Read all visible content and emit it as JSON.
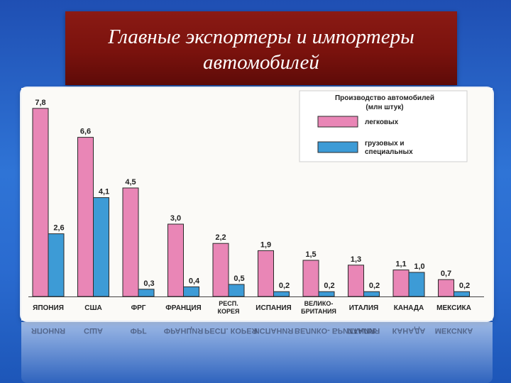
{
  "slide": {
    "title_line1": "Главные экспортеры и импортеры",
    "title_line2": "автомобилей"
  },
  "chart_data": {
    "type": "bar",
    "legend_title": [
      "Производство автомобилей",
      "(млн штук)"
    ],
    "legend_position": "top-right",
    "categories": [
      "ЯПОНИЯ",
      "США",
      "ФРГ",
      "ФРАНЦИЯ",
      "РЕСП. КОРЕЯ",
      "ИСПАНИЯ",
      "ВЕЛИКО- БРИТАНИЯ",
      "ИТАЛИЯ",
      "КАНАДА",
      "МЕКСИКА"
    ],
    "category_lines": [
      [
        "ЯПОНИЯ"
      ],
      [
        "США"
      ],
      [
        "ФРГ"
      ],
      [
        "ФРАНЦИЯ"
      ],
      [
        "РЕСП.",
        "КОРЕЯ"
      ],
      [
        "ИСПАНИЯ"
      ],
      [
        "ВЕЛИКО-",
        "БРИТАНИЯ"
      ],
      [
        "ИТАЛИЯ"
      ],
      [
        "КАНАДА"
      ],
      [
        "МЕКСИКА"
      ]
    ],
    "series": [
      {
        "name": "легковых",
        "color": "#e986b6",
        "values": [
          7.8,
          6.6,
          4.5,
          3.0,
          2.2,
          1.9,
          1.5,
          1.3,
          1.1,
          0.7
        ],
        "labels": [
          "7,8",
          "6,6",
          "4,5",
          "3,0",
          "2,2",
          "1,9",
          "1,5",
          "1,3",
          "1,1",
          "0,7"
        ]
      },
      {
        "name": "грузовых и специальных",
        "name_lines": [
          "грузовых и",
          "специальных"
        ],
        "color": "#3d9bd6",
        "values": [
          2.6,
          4.1,
          0.3,
          0.4,
          0.5,
          0.2,
          0.2,
          0.2,
          1.0,
          0.2
        ],
        "labels": [
          "2,6",
          "4,1",
          "0,3",
          "0,4",
          "0,5",
          "0,2",
          "0,2",
          "0,2",
          "1,0",
          "0,2"
        ]
      }
    ],
    "ylim": [
      0,
      8
    ],
    "grid": false
  }
}
